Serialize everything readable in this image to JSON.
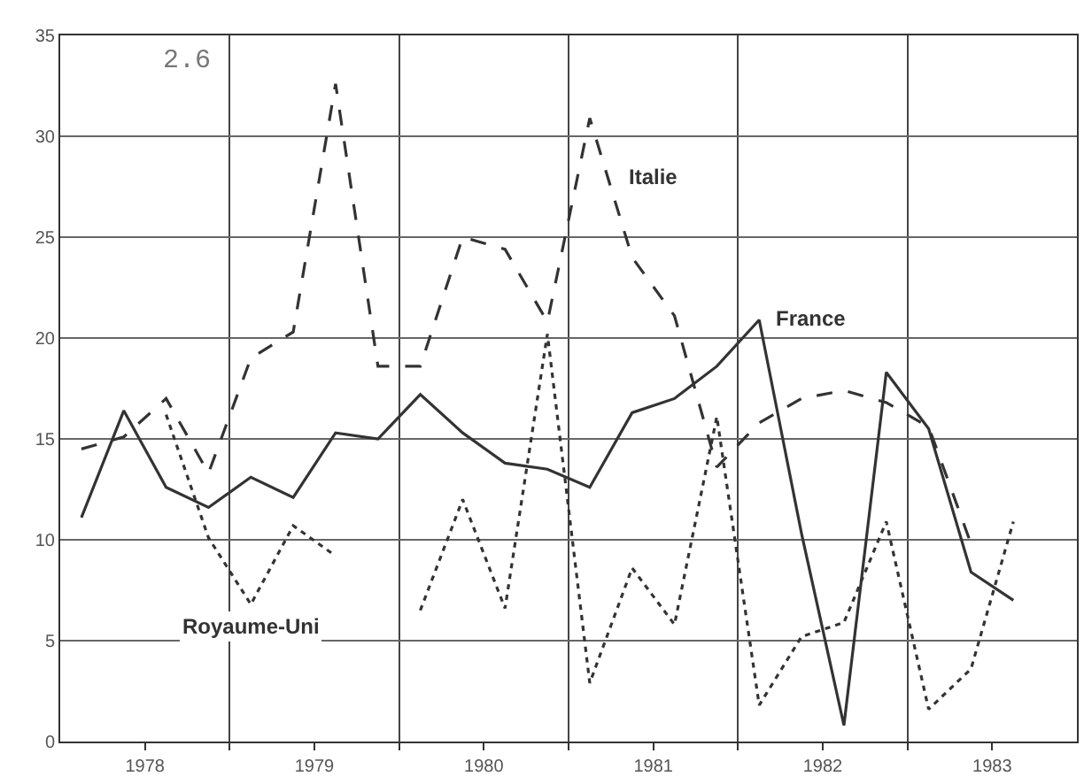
{
  "chart_data": {
    "type": "line",
    "x": [
      1978.125,
      1978.375,
      1978.625,
      1978.875,
      1979.125,
      1979.375,
      1979.625,
      1979.875,
      1980.125,
      1980.375,
      1980.625,
      1980.875,
      1981.125,
      1981.375,
      1981.625,
      1981.875,
      1982.125,
      1982.375,
      1982.625,
      1982.875,
      1983.125,
      1983.375,
      1983.625
    ],
    "series": [
      {
        "name": "Royaume-Uni",
        "color": "#333333",
        "line_style": "dotted",
        "values": [
          null,
          null,
          16.2,
          10.1,
          6.8,
          10.7,
          9.2,
          null,
          6.5,
          12.0,
          6.6,
          20.2,
          2.9,
          8.6,
          5.8,
          16.1,
          1.8,
          5.2,
          5.9,
          10.9,
          1.6,
          3.6,
          10.9
        ]
      },
      {
        "name": "Italie",
        "color": "#333333",
        "line_style": "dashed",
        "values": [
          14.5,
          15.1,
          17.0,
          13.3,
          19.0,
          20.3,
          32.6,
          18.6,
          18.6,
          25.0,
          24.4,
          20.8,
          30.9,
          24.0,
          21.1,
          13.6,
          15.8,
          17.0,
          17.4,
          16.8,
          15.6,
          9.8,
          null
        ]
      },
      {
        "name": "France",
        "color": "#333333",
        "line_style": "solid",
        "values": [
          11.1,
          16.4,
          12.6,
          11.6,
          13.1,
          12.1,
          15.3,
          15.0,
          17.2,
          15.3,
          13.8,
          13.5,
          12.6,
          16.3,
          17.0,
          18.6,
          20.9,
          10.3,
          0.8,
          18.3,
          15.5,
          8.4,
          7.0
        ]
      }
    ],
    "xlim": [
      1978,
      1984
    ],
    "xticks": [
      {
        "value": 1978.5,
        "label": "1978"
      },
      {
        "value": 1979.5,
        "label": "1979"
      },
      {
        "value": 1980.5,
        "label": "1980"
      },
      {
        "value": 1981.5,
        "label": "1981"
      },
      {
        "value": 1982.5,
        "label": "1982"
      },
      {
        "value": 1983.5,
        "label": "1983"
      },
      {
        "value": 1979,
        "label": null
      },
      {
        "value": 1980,
        "label": null
      },
      {
        "value": 1981,
        "label": null
      },
      {
        "value": 1982,
        "label": null
      },
      {
        "value": 1983,
        "label": null
      }
    ],
    "ylim": [
      0,
      35
    ],
    "yticks": [
      0,
      5,
      10,
      15,
      20,
      25,
      30,
      35
    ],
    "grid": true,
    "legend": false,
    "marker": "none",
    "annotations": [
      "2.6"
    ]
  }
}
